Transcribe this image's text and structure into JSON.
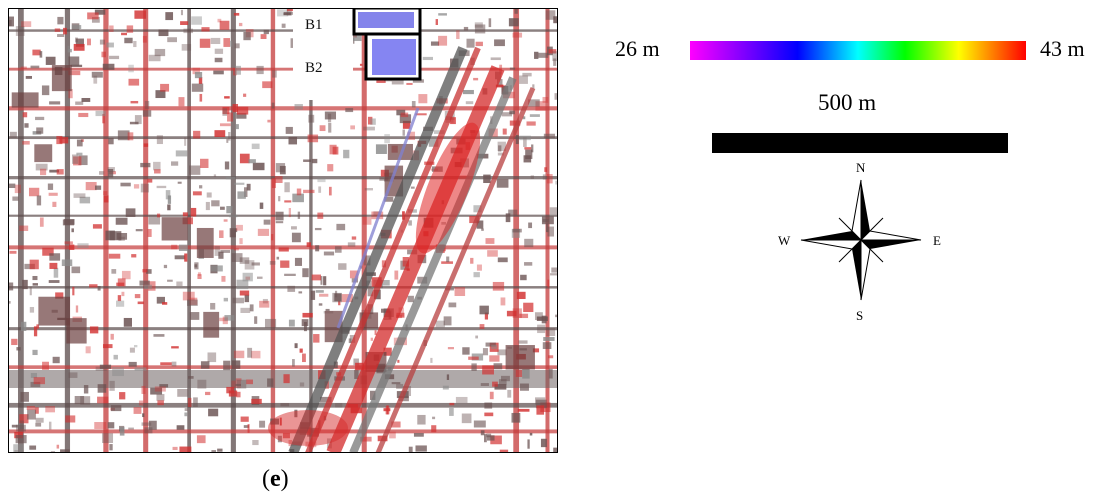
{
  "map": {
    "inset_labels": [
      "B1",
      "B2"
    ],
    "caption": "(e)",
    "caption_letter": "e"
  },
  "legend": {
    "min_label": "26 m",
    "max_label": "43 m",
    "colors": [
      "#ff00ff",
      "#8f00ff",
      "#0000ff",
      "#00ffff",
      "#00ff00",
      "#ffff00",
      "#ff7f00",
      "#ff0000"
    ]
  },
  "scale": {
    "label": "500 m"
  },
  "compass": {
    "north": "N",
    "south": "S",
    "east": "E",
    "west": "W"
  }
}
